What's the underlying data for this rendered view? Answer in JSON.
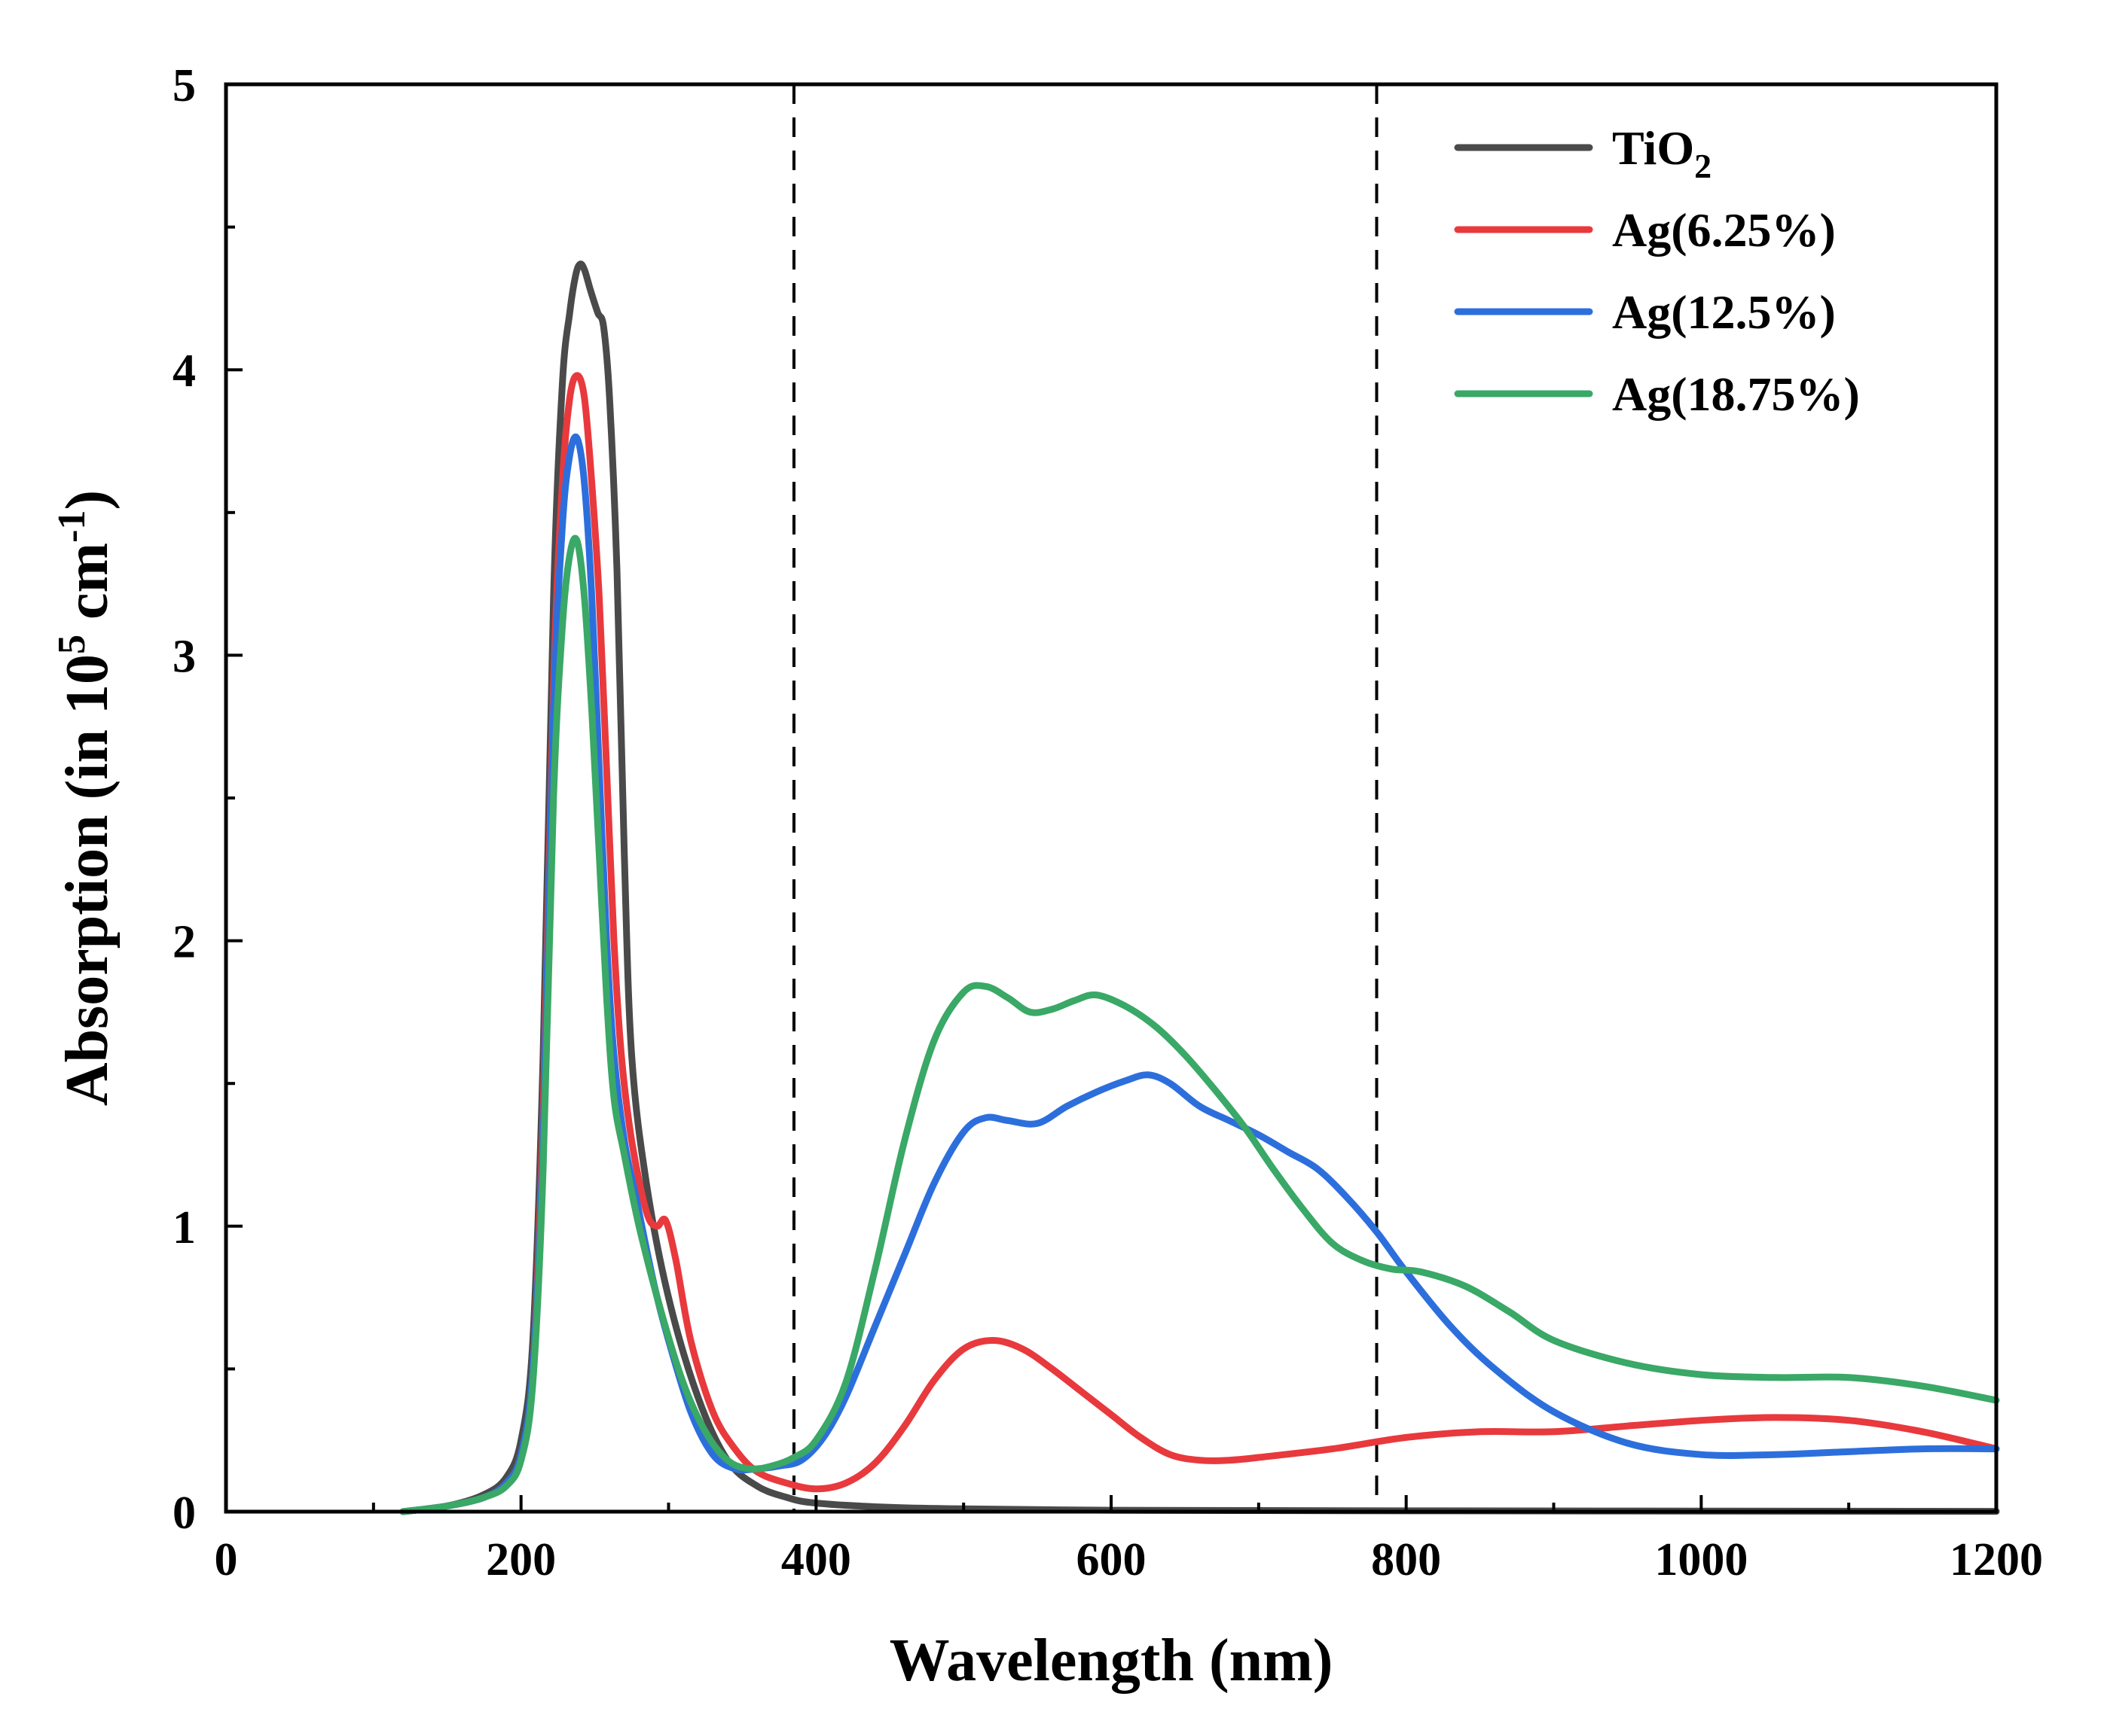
{
  "chart_data": {
    "type": "line",
    "title": "",
    "xlabel": "Wavelength (nm)",
    "ylabel": {
      "prefix": "Absorption (in 10",
      "exp": "5",
      "mid": " cm",
      "exp2": "-1",
      "suffix": ")"
    },
    "xlim": [
      0,
      1200
    ],
    "ylim": [
      0,
      5
    ],
    "xticks": [
      0,
      200,
      400,
      600,
      800,
      1000,
      1200
    ],
    "xtick_labels": [
      "0",
      "200",
      "400",
      "600",
      "800",
      "1000",
      "1200"
    ],
    "yticks": [
      0,
      1,
      2,
      3,
      4,
      5
    ],
    "ytick_labels": [
      "0",
      "1",
      "2",
      "3",
      "4",
      "5"
    ],
    "grid": false,
    "legend_position": "top-right",
    "reference_lines": [
      {
        "axis": "x",
        "value": 385,
        "style": "dashed"
      },
      {
        "axis": "x",
        "value": 780,
        "style": "dashed"
      }
    ],
    "series": [
      {
        "name": "TiO2",
        "label_main": "TiO",
        "label_sub": "2",
        "color": "#4a4a4a",
        "x": [
          120,
          150,
          175,
          190,
          200,
          208,
          215,
          222,
          228,
          233,
          237,
          240,
          243,
          247,
          252,
          256,
          260,
          265,
          270,
          275,
          285,
          300,
          320,
          340,
          360,
          380,
          400,
          450,
          500,
          600,
          700,
          800,
          1000,
          1200
        ],
        "y": [
          0.0,
          0.02,
          0.06,
          0.12,
          0.25,
          0.6,
          1.6,
          3.2,
          3.95,
          4.2,
          4.33,
          4.37,
          4.35,
          4.28,
          4.2,
          4.15,
          3.9,
          3.3,
          2.3,
          1.6,
          1.15,
          0.75,
          0.4,
          0.18,
          0.09,
          0.05,
          0.03,
          0.015,
          0.01,
          0.005,
          0.004,
          0.003,
          0.002,
          0.001
        ]
      },
      {
        "name": "Ag(6.25%)",
        "label_main": "Ag(6.25%)",
        "label_sub": "",
        "color": "#e8393d",
        "x": [
          120,
          150,
          175,
          190,
          200,
          208,
          215,
          222,
          228,
          233,
          238,
          243,
          248,
          253,
          258,
          263,
          268,
          275,
          285,
          292,
          298,
          305,
          315,
          330,
          345,
          360,
          380,
          400,
          420,
          440,
          460,
          480,
          500,
          520,
          540,
          560,
          580,
          600,
          620,
          640,
          660,
          680,
          700,
          750,
          800,
          850,
          900,
          950,
          1000,
          1050,
          1100,
          1150,
          1200
        ],
        "y": [
          0.0,
          0.02,
          0.05,
          0.1,
          0.2,
          0.5,
          1.4,
          2.9,
          3.6,
          3.9,
          3.98,
          3.9,
          3.6,
          3.2,
          2.6,
          2.0,
          1.6,
          1.3,
          1.05,
          1.0,
          1.02,
          0.88,
          0.6,
          0.35,
          0.22,
          0.14,
          0.1,
          0.08,
          0.1,
          0.17,
          0.3,
          0.46,
          0.57,
          0.6,
          0.57,
          0.5,
          0.42,
          0.34,
          0.26,
          0.2,
          0.18,
          0.18,
          0.19,
          0.22,
          0.26,
          0.28,
          0.28,
          0.3,
          0.32,
          0.33,
          0.32,
          0.28,
          0.22
        ]
      },
      {
        "name": "Ag(12.5%)",
        "label_main": "Ag(12.5%)",
        "label_sub": "",
        "color": "#2c6fdc",
        "x": [
          120,
          150,
          175,
          190,
          200,
          208,
          215,
          222,
          228,
          233,
          238,
          243,
          248,
          253,
          258,
          263,
          270,
          278,
          290,
          300,
          315,
          330,
          345,
          360,
          375,
          390,
          405,
          420,
          440,
          460,
          480,
          500,
          515,
          530,
          550,
          570,
          590,
          610,
          625,
          640,
          660,
          680,
          700,
          720,
          740,
          760,
          780,
          800,
          830,
          860,
          900,
          950,
          1000,
          1050,
          1100,
          1150,
          1200
        ],
        "y": [
          0.0,
          0.02,
          0.05,
          0.1,
          0.2,
          0.5,
          1.3,
          2.8,
          3.45,
          3.7,
          3.76,
          3.6,
          3.2,
          2.6,
          2.0,
          1.6,
          1.3,
          1.1,
          0.8,
          0.6,
          0.35,
          0.2,
          0.15,
          0.15,
          0.16,
          0.18,
          0.26,
          0.4,
          0.65,
          0.9,
          1.15,
          1.33,
          1.38,
          1.37,
          1.36,
          1.42,
          1.47,
          1.51,
          1.53,
          1.5,
          1.42,
          1.37,
          1.32,
          1.26,
          1.2,
          1.1,
          0.98,
          0.84,
          0.65,
          0.5,
          0.35,
          0.24,
          0.2,
          0.2,
          0.21,
          0.22,
          0.22
        ]
      },
      {
        "name": "Ag(18.75%)",
        "label_main": "Ag(18.75%)",
        "label_sub": "",
        "color": "#3aa866",
        "x": [
          120,
          150,
          175,
          190,
          200,
          208,
          215,
          222,
          228,
          233,
          238,
          243,
          248,
          253,
          258,
          263,
          270,
          280,
          295,
          310,
          325,
          340,
          355,
          370,
          385,
          400,
          420,
          440,
          460,
          480,
          500,
          515,
          530,
          545,
          560,
          575,
          590,
          610,
          630,
          650,
          670,
          690,
          710,
          730,
          750,
          770,
          790,
          810,
          840,
          870,
          900,
          950,
          1000,
          1050,
          1100,
          1150,
          1200
        ],
        "y": [
          0.0,
          0.02,
          0.05,
          0.09,
          0.18,
          0.45,
          1.2,
          2.5,
          3.1,
          3.35,
          3.4,
          3.2,
          2.8,
          2.3,
          1.8,
          1.45,
          1.25,
          1.0,
          0.7,
          0.45,
          0.28,
          0.18,
          0.15,
          0.16,
          0.19,
          0.25,
          0.45,
          0.85,
          1.3,
          1.65,
          1.82,
          1.84,
          1.8,
          1.75,
          1.76,
          1.79,
          1.81,
          1.77,
          1.7,
          1.6,
          1.48,
          1.35,
          1.2,
          1.06,
          0.94,
          0.88,
          0.85,
          0.84,
          0.79,
          0.7,
          0.6,
          0.52,
          0.48,
          0.47,
          0.47,
          0.44,
          0.39
        ]
      }
    ]
  }
}
